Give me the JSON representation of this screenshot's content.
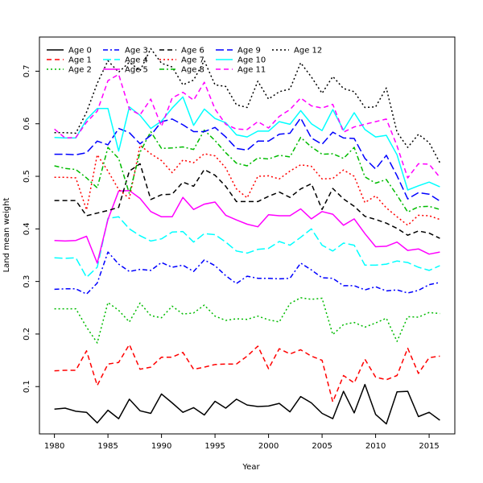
{
  "chart_data": {
    "type": "line",
    "title": "",
    "xlabel": "Year",
    "ylabel": "Land mean weight",
    "xlim": [
      1978.6,
      2017.4
    ],
    "ylim": [
      0.01,
      0.765
    ],
    "x_ticks": [
      1980,
      1985,
      1990,
      1995,
      2000,
      2005,
      2010,
      2015
    ],
    "y_ticks": [
      0.1,
      0.2,
      0.3,
      0.4,
      0.5,
      0.6,
      0.7
    ],
    "grid": false,
    "legend_position": "top-left",
    "x": [
      1980,
      1981,
      1982,
      1983,
      1984,
      1985,
      1986,
      1987,
      1988,
      1989,
      1990,
      1991,
      1992,
      1993,
      1994,
      1995,
      1996,
      1997,
      1998,
      1999,
      2000,
      2001,
      2002,
      2003,
      2004,
      2005,
      2006,
      2007,
      2008,
      2009,
      2010,
      2011,
      2012,
      2013,
      2014,
      2015,
      2016
    ],
    "series": [
      {
        "name": "Age 0",
        "color": "#000000",
        "dash": "solid",
        "values": [
          0.057,
          0.059,
          0.053,
          0.051,
          0.031,
          0.055,
          0.039,
          0.076,
          0.054,
          0.049,
          0.086,
          0.069,
          0.051,
          0.06,
          0.046,
          0.072,
          0.059,
          0.076,
          0.065,
          0.062,
          0.063,
          0.068,
          0.052,
          0.081,
          0.069,
          0.049,
          0.039,
          0.091,
          0.05,
          0.104,
          0.047,
          0.029,
          0.09,
          0.091,
          0.043,
          0.051,
          0.036
        ]
      },
      {
        "name": "Age 1",
        "color": "#ff0000",
        "dash": "dashed",
        "values": [
          0.13,
          0.131,
          0.131,
          0.168,
          0.102,
          0.143,
          0.146,
          0.18,
          0.133,
          0.137,
          0.156,
          0.156,
          0.165,
          0.133,
          0.137,
          0.142,
          0.143,
          0.143,
          0.158,
          0.177,
          0.134,
          0.172,
          0.162,
          0.17,
          0.158,
          0.15,
          0.071,
          0.121,
          0.107,
          0.152,
          0.118,
          0.113,
          0.121,
          0.173,
          0.125,
          0.155,
          0.158
        ]
      },
      {
        "name": "Age 2",
        "color": "#00bb00",
        "dash": "dotted",
        "values": [
          0.248,
          0.248,
          0.248,
          0.213,
          0.183,
          0.26,
          0.245,
          0.223,
          0.259,
          0.235,
          0.231,
          0.253,
          0.238,
          0.24,
          0.255,
          0.234,
          0.226,
          0.229,
          0.228,
          0.234,
          0.227,
          0.223,
          0.258,
          0.269,
          0.266,
          0.268,
          0.199,
          0.218,
          0.222,
          0.213,
          0.221,
          0.23,
          0.186,
          0.233,
          0.232,
          0.241,
          0.239
        ]
      },
      {
        "name": "Age 3",
        "color": "#0000ff",
        "dash": "dashdot",
        "values": [
          0.285,
          0.286,
          0.286,
          0.276,
          0.297,
          0.356,
          0.333,
          0.319,
          0.323,
          0.321,
          0.336,
          0.327,
          0.331,
          0.319,
          0.341,
          0.33,
          0.311,
          0.296,
          0.31,
          0.306,
          0.306,
          0.305,
          0.306,
          0.335,
          0.322,
          0.307,
          0.306,
          0.292,
          0.292,
          0.284,
          0.29,
          0.282,
          0.284,
          0.278,
          0.283,
          0.294,
          0.298
        ]
      },
      {
        "name": "Age 4",
        "color": "#00ffff",
        "dash": "longdash",
        "values": [
          0.345,
          0.344,
          0.345,
          0.308,
          0.327,
          0.42,
          0.423,
          0.4,
          0.387,
          0.377,
          0.381,
          0.394,
          0.395,
          0.375,
          0.391,
          0.389,
          0.375,
          0.358,
          0.354,
          0.361,
          0.363,
          0.376,
          0.369,
          0.384,
          0.4,
          0.369,
          0.358,
          0.373,
          0.369,
          0.331,
          0.331,
          0.333,
          0.339,
          0.336,
          0.327,
          0.321,
          0.33
        ]
      },
      {
        "name": "Age 5",
        "color": "#ff00ff",
        "dash": "solid",
        "values": [
          0.378,
          0.377,
          0.378,
          0.386,
          0.335,
          0.418,
          0.472,
          0.473,
          0.458,
          0.433,
          0.423,
          0.423,
          0.46,
          0.437,
          0.447,
          0.451,
          0.426,
          0.417,
          0.409,
          0.404,
          0.427,
          0.425,
          0.425,
          0.438,
          0.419,
          0.433,
          0.428,
          0.407,
          0.419,
          0.391,
          0.366,
          0.367,
          0.375,
          0.359,
          0.362,
          0.352,
          0.356
        ]
      },
      {
        "name": "Age 6",
        "color": "#000000",
        "dash": "dashed",
        "values": [
          0.454,
          0.454,
          0.454,
          0.425,
          0.43,
          0.435,
          0.441,
          0.51,
          0.524,
          0.456,
          0.465,
          0.466,
          0.489,
          0.481,
          0.513,
          0.502,
          0.481,
          0.452,
          0.452,
          0.452,
          0.462,
          0.47,
          0.46,
          0.476,
          0.486,
          0.437,
          0.477,
          0.457,
          0.443,
          0.424,
          0.418,
          0.411,
          0.401,
          0.388,
          0.396,
          0.392,
          0.382
        ]
      },
      {
        "name": "Age 7",
        "color": "#ff0000",
        "dash": "dotted",
        "values": [
          0.498,
          0.498,
          0.497,
          0.436,
          0.541,
          0.51,
          0.475,
          0.458,
          0.559,
          0.543,
          0.53,
          0.507,
          0.531,
          0.526,
          0.543,
          0.539,
          0.516,
          0.476,
          0.459,
          0.5,
          0.501,
          0.495,
          0.51,
          0.522,
          0.519,
          0.495,
          0.496,
          0.512,
          0.5,
          0.45,
          0.463,
          0.44,
          0.423,
          0.407,
          0.426,
          0.425,
          0.418
        ]
      },
      {
        "name": "Age 8",
        "color": "#00bb00",
        "dash": "dashdot",
        "values": [
          0.52,
          0.515,
          0.513,
          0.497,
          0.478,
          0.555,
          0.534,
          0.467,
          0.546,
          0.585,
          0.553,
          0.554,
          0.556,
          0.551,
          0.588,
          0.568,
          0.545,
          0.525,
          0.52,
          0.535,
          0.533,
          0.54,
          0.537,
          0.574,
          0.556,
          0.542,
          0.543,
          0.534,
          0.555,
          0.499,
          0.487,
          0.494,
          0.464,
          0.432,
          0.442,
          0.443,
          0.437
        ]
      },
      {
        "name": "Age 9",
        "color": "#0000ff",
        "dash": "longdash",
        "values": [
          0.542,
          0.542,
          0.541,
          0.545,
          0.567,
          0.56,
          0.591,
          0.583,
          0.562,
          0.578,
          0.604,
          0.609,
          0.598,
          0.585,
          0.585,
          0.593,
          0.575,
          0.553,
          0.55,
          0.567,
          0.567,
          0.58,
          0.582,
          0.611,
          0.573,
          0.561,
          0.584,
          0.573,
          0.572,
          0.534,
          0.514,
          0.54,
          0.501,
          0.457,
          0.469,
          0.466,
          0.453
        ]
      },
      {
        "name": "Age 10",
        "color": "#00ffff",
        "dash": "solid",
        "values": [
          0.574,
          0.573,
          0.573,
          0.608,
          0.629,
          0.629,
          0.548,
          0.632,
          0.616,
          0.591,
          0.605,
          0.63,
          0.651,
          0.597,
          0.628,
          0.61,
          0.602,
          0.579,
          0.575,
          0.586,
          0.586,
          0.604,
          0.599,
          0.625,
          0.6,
          0.587,
          0.627,
          0.588,
          0.621,
          0.589,
          0.575,
          0.578,
          0.541,
          0.474,
          0.482,
          0.489,
          0.48
        ]
      },
      {
        "name": "Age 11",
        "color": "#ff00ff",
        "dash": "dashed",
        "values": [
          0.59,
          0.573,
          0.574,
          0.603,
          0.624,
          0.682,
          0.694,
          0.628,
          0.617,
          0.647,
          0.595,
          0.649,
          0.66,
          0.645,
          0.679,
          0.628,
          0.599,
          0.59,
          0.589,
          0.604,
          0.592,
          0.614,
          0.627,
          0.649,
          0.634,
          0.63,
          0.637,
          0.584,
          0.594,
          0.599,
          0.604,
          0.609,
          0.558,
          0.497,
          0.524,
          0.523,
          0.498
        ]
      },
      {
        "name": "Age 12",
        "color": "#000000",
        "dash": "dotted",
        "values": [
          0.583,
          0.583,
          0.582,
          0.622,
          0.677,
          0.72,
          0.698,
          0.717,
          0.701,
          0.743,
          0.715,
          0.708,
          0.674,
          0.683,
          0.72,
          0.674,
          0.671,
          0.636,
          0.631,
          0.681,
          0.647,
          0.661,
          0.666,
          0.716,
          0.689,
          0.658,
          0.69,
          0.667,
          0.661,
          0.631,
          0.632,
          0.668,
          0.584,
          0.555,
          0.58,
          0.564,
          0.526
        ]
      }
    ]
  }
}
